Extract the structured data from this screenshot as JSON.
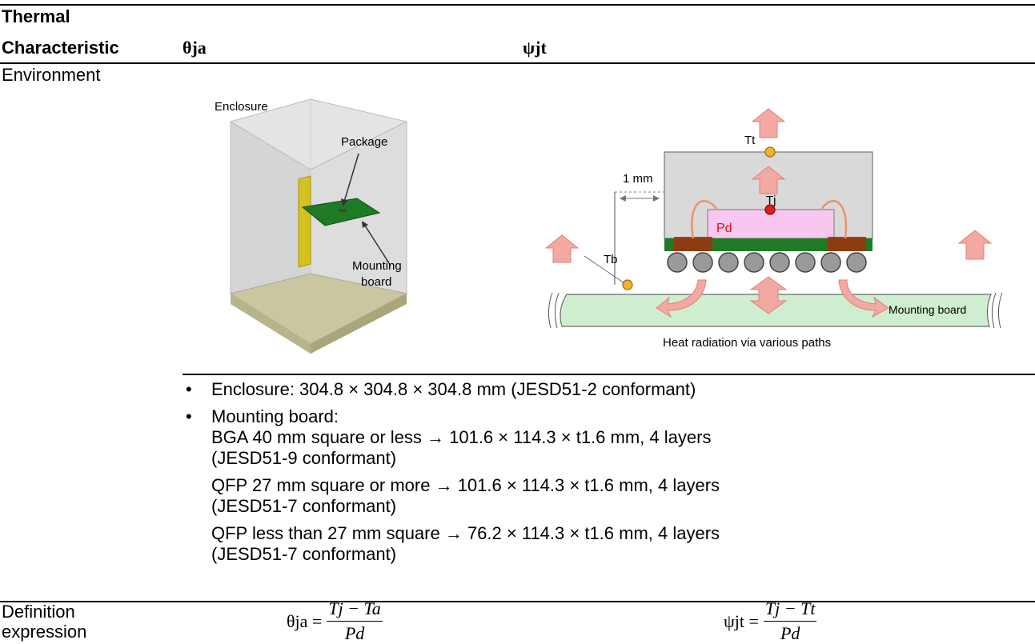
{
  "header": {
    "col1_line1": "Thermal",
    "col1_line2": "Characteristic",
    "col2": "θja",
    "col3": "ψjt"
  },
  "environment": {
    "label": "Environment",
    "left_figure": {
      "enclosure": "Enclosure",
      "package": "Package",
      "mounting_line1": "Mounting",
      "mounting_line2": "board"
    },
    "right_figure": {
      "tt": "Tt",
      "tj": "Tj",
      "tb": "Tb",
      "pd": "Pd",
      "one_mm": "1 mm",
      "mounting_board": "Mounting board",
      "caption": "Heat radiation via various paths"
    },
    "bullets": [
      {
        "lines": [
          "Enclosure: 304.8 × 304.8 × 304.8 mm (JESD51-2 conformant)"
        ]
      },
      {
        "lines": [
          "Mounting board:",
          "BGA 40 mm square or less → 101.6 × 114.3 × t1.6 mm, 4 layers",
          "(JESD51-9 conformant)",
          "QFP 27 mm square or more → 101.6 × 114.3 × t1.6 mm, 4 layers",
          "(JESD51-7 conformant)",
          "QFP less than 27 mm square → 76.2 × 114.3 × t1.6 mm, 4 layers",
          "(JESD51-7 conformant)"
        ]
      }
    ]
  },
  "definition": {
    "label_line1": "Definition",
    "label_line2": "expression",
    "theta": {
      "lhs": "θja =",
      "num": "Tj − Ta",
      "den": "Pd"
    },
    "psi": {
      "lhs": "ψjt =",
      "num": "Tj − Tt",
      "den": "Pd"
    }
  }
}
